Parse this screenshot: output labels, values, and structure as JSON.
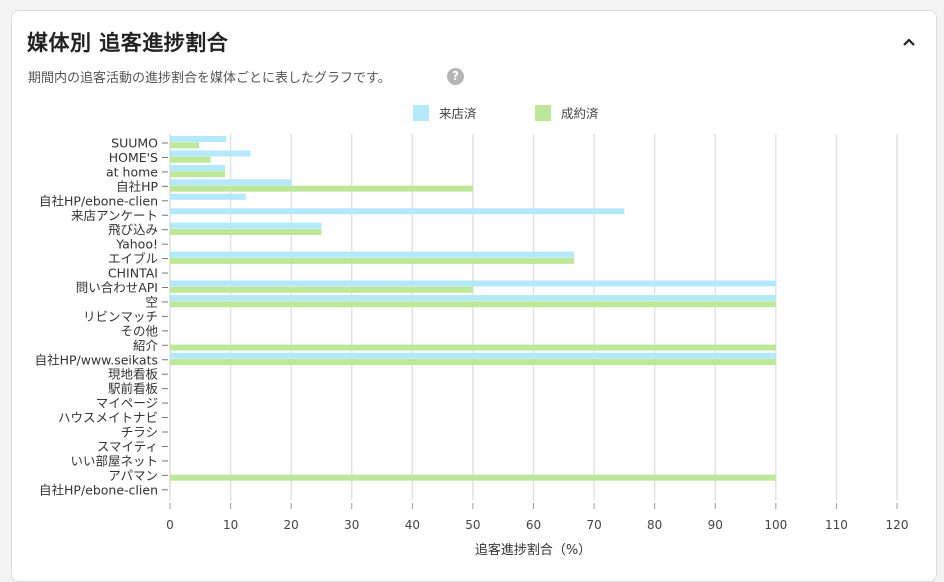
{
  "header": {
    "title": "媒体別 追客進捗割合",
    "subtitle": "期間内の追客活動の進捗割合を媒体ごとに表したグラフです。",
    "help_icon": "question-circle-icon",
    "collapse_icon": "chevron-up-icon"
  },
  "chart_data": {
    "type": "bar",
    "orientation": "horizontal",
    "xlabel": "追客進捗割合（%）",
    "xlim": [
      0,
      120
    ],
    "xticks": [
      0,
      10,
      20,
      30,
      40,
      50,
      60,
      70,
      80,
      90,
      100,
      110,
      120
    ],
    "grid": true,
    "legend_position": "top",
    "categories": [
      "SUUMO",
      "HOME'S",
      "at home",
      "自社HP",
      "自社HP/ebone-clien",
      "来店アンケート",
      "飛び込み",
      "Yahoo!",
      "エイブル",
      "CHINTAI",
      "問い合わせAPI",
      "空",
      "リビンマッチ",
      "その他",
      "紹介",
      "自社HP/www.seikats",
      "現地看板",
      "駅前看板",
      "マイページ",
      "ハウスメイトナビ",
      "チラシ",
      "スマイティ",
      "いい部屋ネット",
      "アパマン",
      "自社HP/ebone-clien"
    ],
    "series": [
      {
        "name": "来店済",
        "color": "#b3e9fb",
        "values": [
          9.3,
          13.3,
          9.1,
          20,
          12.5,
          75,
          25,
          0,
          66.7,
          0,
          100,
          100,
          0,
          0,
          0,
          100,
          0,
          0,
          0,
          0,
          0,
          0,
          0,
          0,
          0
        ]
      },
      {
        "name": "成約済",
        "color": "#bde89a",
        "values": [
          4.8,
          6.7,
          9.1,
          50,
          0,
          0,
          25,
          0,
          66.7,
          0,
          50,
          100,
          0,
          0,
          100,
          100,
          0,
          0,
          0,
          0,
          0,
          0,
          0,
          100,
          0
        ]
      }
    ]
  }
}
